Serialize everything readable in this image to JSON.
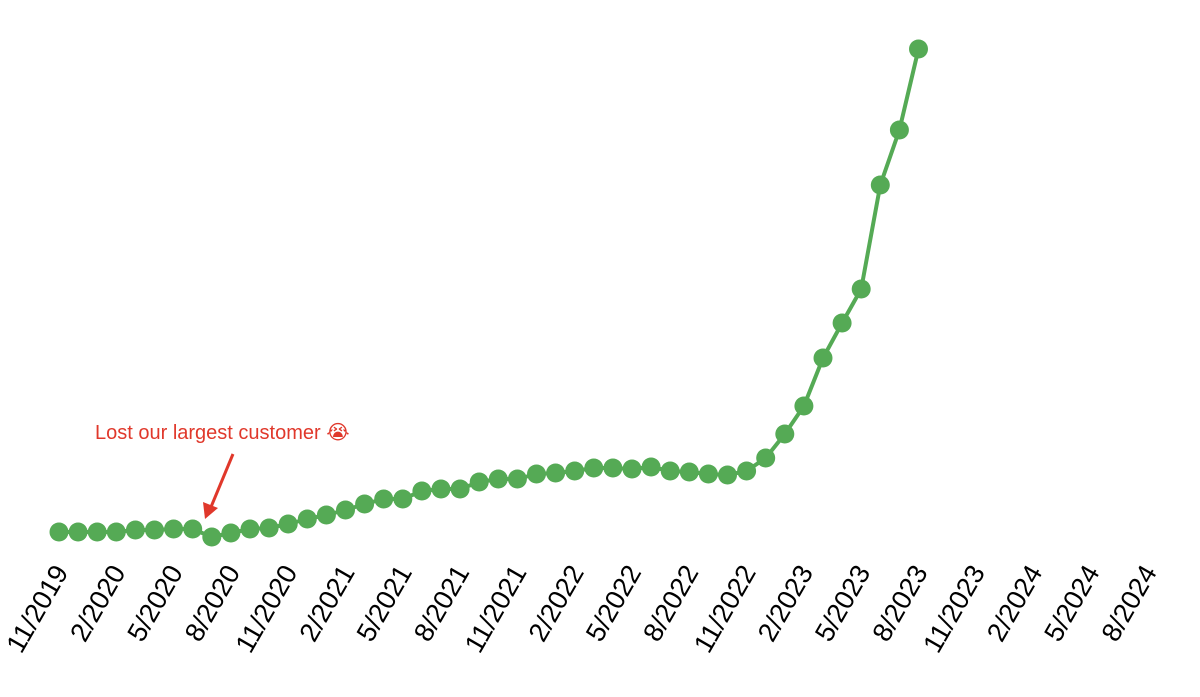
{
  "chart_data": {
    "type": "line",
    "categories": [
      "11/2019",
      null,
      null,
      "2/2020",
      null,
      null,
      "5/2020",
      null,
      null,
      "8/2020",
      null,
      null,
      "11/2020",
      null,
      null,
      "2/2021",
      null,
      null,
      "5/2021",
      null,
      null,
      "8/2021",
      null,
      null,
      "11/2021",
      null,
      null,
      "2/2022",
      null,
      null,
      "5/2022",
      null,
      null,
      "8/2022",
      null,
      null,
      "11/2022",
      null,
      null,
      "2/2023",
      null,
      null,
      "5/2023",
      null,
      null,
      "8/2023",
      null,
      null,
      "11/2023",
      null,
      null,
      "2/2024",
      null,
      null,
      "5/2024",
      null,
      null,
      "8/2024"
    ],
    "series": [
      {
        "color": "#55aa55",
        "values": [
          2.6,
          2.6,
          2.6,
          2.6,
          3,
          3,
          3.2,
          3.2,
          1.6,
          2.4,
          3.2,
          3.4,
          4.2,
          5.2,
          6,
          7,
          8.2,
          9.2,
          9.2,
          10.8,
          11.2,
          11.2,
          12.6,
          13.2,
          13.2,
          14.2,
          14.4,
          14.8,
          15.4,
          15.4,
          15.2,
          15.6,
          14.8,
          14.6,
          14.2,
          14,
          14.8,
          17.4,
          22.2,
          27.8,
          37.4,
          44.4,
          51.2,
          72,
          83,
          99.2,
          null,
          null,
          null,
          null,
          null,
          null,
          null,
          null,
          null,
          null,
          null,
          null
        ]
      }
    ],
    "ylim": [
      0,
      100
    ],
    "annotation": "Lost our largest customer 😭"
  }
}
